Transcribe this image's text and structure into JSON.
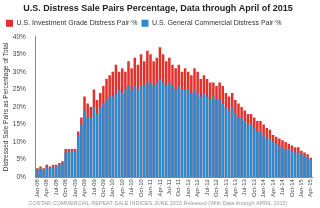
{
  "chart_data": {
    "type": "bar",
    "title": "U.S. Distress Sale Pairs Percentage, Data through April of 2015",
    "ylabel": "Distressed Sale Pairs as Percentage of Total",
    "source": "COSTAR COMMERCIAL REPEAT-SALE INDICES JUNE 2015 Released (With Data through APRIL 2015)",
    "categories": [
      "Jan-08",
      null,
      null,
      "Apr-08",
      null,
      null,
      "Jul-08",
      null,
      null,
      "Oct-08",
      null,
      null,
      "Jan-09",
      null,
      null,
      "Apr-09",
      null,
      null,
      "Jul-09",
      null,
      null,
      "Oct-09",
      null,
      null,
      "Jan-10",
      null,
      null,
      "Apr-10",
      null,
      null,
      "Jul-10",
      null,
      null,
      "Oct-10",
      null,
      null,
      "Jan-11",
      null,
      null,
      "Apr-11",
      null,
      null,
      "Jul-11",
      null,
      null,
      "Oct-11",
      null,
      null,
      "Jan-12",
      null,
      null,
      "Apr-12",
      null,
      null,
      "Jul-12",
      null,
      null,
      "Oct-12",
      null,
      null,
      "Jan-13",
      null,
      null,
      "Apr-13",
      null,
      null,
      "Jul-13",
      null,
      null,
      "Oct-13",
      null,
      null,
      "Jan-14",
      null,
      null,
      "Apr-14",
      null,
      null,
      "Jul-14",
      null,
      null,
      "Oct-14",
      null,
      null,
      "Jan-15",
      null,
      null,
      "Apr-15"
    ],
    "series": [
      {
        "name": "U.S. Investment Grade Distress Pair %",
        "color": "#e2302a",
        "values": [
          2.5,
          3,
          2.5,
          3.5,
          3,
          3.5,
          3.5,
          4,
          4.5,
          8,
          8,
          8,
          8,
          13,
          17,
          23,
          21,
          20,
          25,
          22,
          24,
          26,
          28,
          29,
          30,
          32,
          30,
          31,
          30,
          33,
          31,
          34,
          32,
          35,
          33,
          36,
          35,
          33,
          34,
          37,
          35,
          33,
          34,
          32,
          31,
          32,
          30,
          31,
          30,
          29,
          31,
          30,
          28,
          29,
          28,
          27,
          27,
          26,
          27,
          26,
          24,
          23,
          24,
          22,
          21,
          20,
          19,
          18,
          18,
          17,
          16,
          16,
          15,
          14,
          13.5,
          12,
          11.5,
          11,
          10.5,
          10,
          9.5,
          9,
          8.5,
          8.5,
          7.5,
          7,
          6.5,
          5.5
        ]
      },
      {
        "name": "U.S. General Commercial Distress Pair %",
        "color": "#2a8ccf",
        "values": [
          2,
          2.5,
          2,
          3,
          2.5,
          3,
          3,
          3.5,
          4,
          7,
          7.5,
          7.5,
          7.5,
          12,
          15,
          19,
          17,
          17,
          20,
          18,
          20,
          21,
          22,
          23,
          23,
          24,
          25,
          24,
          25,
          26,
          25,
          26,
          25,
          26,
          26,
          27,
          27,
          26,
          27,
          28,
          27,
          26,
          27,
          26,
          25,
          26,
          25,
          25,
          25,
          24,
          25,
          24,
          23,
          24,
          23,
          22,
          23,
          22,
          22,
          21,
          20,
          19,
          20,
          18,
          17,
          17,
          16,
          15,
          15,
          14,
          13,
          13,
          12,
          11,
          11,
          10,
          9.5,
          9,
          8.5,
          8,
          8,
          7.5,
          7,
          7,
          6.5,
          6,
          5.5,
          5
        ]
      }
    ],
    "ylim": [
      0,
      40
    ],
    "yticks": [
      {
        "value": 0,
        "label": "0%"
      },
      {
        "value": 5,
        "label": "5%"
      },
      {
        "value": 10,
        "label": "10%"
      },
      {
        "value": 15,
        "label": "15%"
      },
      {
        "value": 20,
        "label": "20%"
      },
      {
        "value": 25,
        "label": "25%"
      },
      {
        "value": 30,
        "label": "30%"
      },
      {
        "value": 35,
        "label": "35%"
      },
      {
        "value": 40,
        "label": "40%"
      }
    ],
    "grid": false,
    "legend": "top"
  }
}
